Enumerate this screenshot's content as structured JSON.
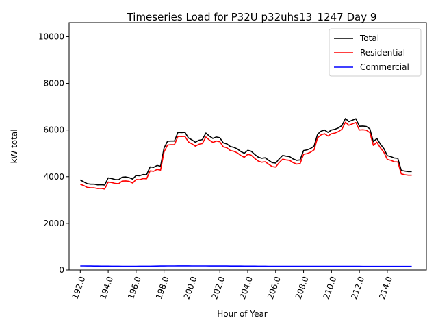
{
  "chart_data": {
    "type": "line",
    "title": "Timeseries Load for P32U p32uhs13_1247  Day 9",
    "xlabel": "Hour of Year",
    "ylabel": "kW total",
    "xlim": [
      191.2,
      216.8
    ],
    "ylim": [
      0,
      10600
    ],
    "xticks": [
      192,
      194,
      196,
      198,
      200,
      202,
      204,
      206,
      208,
      210,
      212,
      214
    ],
    "xtick_labels": [
      "192.0",
      "194.0",
      "196.0",
      "198.0",
      "200.0",
      "202.0",
      "204.0",
      "206.0",
      "208.0",
      "210.0",
      "212.0",
      "214.0"
    ],
    "yticks": [
      0,
      2000,
      4000,
      6000,
      8000,
      10000
    ],
    "ytick_labels": [
      "0",
      "2000",
      "4000",
      "6000",
      "8000",
      "10000"
    ],
    "legend_position": "top-right",
    "grid": false,
    "x": [
      192.0,
      192.25,
      192.5,
      192.75,
      193.0,
      193.25,
      193.5,
      193.75,
      194.0,
      194.25,
      194.5,
      194.75,
      195.0,
      195.25,
      195.5,
      195.75,
      196.0,
      196.25,
      196.5,
      196.75,
      197.0,
      197.25,
      197.5,
      197.75,
      198.0,
      198.25,
      198.5,
      198.75,
      199.0,
      199.25,
      199.5,
      199.75,
      200.0,
      200.25,
      200.5,
      200.75,
      201.0,
      201.25,
      201.5,
      201.75,
      202.0,
      202.25,
      202.5,
      202.75,
      203.0,
      203.25,
      203.5,
      203.75,
      204.0,
      204.25,
      204.5,
      204.75,
      205.0,
      205.25,
      205.5,
      205.75,
      206.0,
      206.25,
      206.5,
      206.75,
      207.0,
      207.25,
      207.5,
      207.75,
      208.0,
      208.25,
      208.5,
      208.75,
      209.0,
      209.25,
      209.5,
      209.75,
      210.0,
      210.25,
      210.5,
      210.75,
      211.0,
      211.25,
      211.5,
      211.75,
      212.0,
      212.25,
      212.5,
      212.75,
      213.0,
      213.25,
      213.5,
      213.75,
      214.0,
      214.25,
      214.5,
      214.75,
      215.0,
      215.25,
      215.5,
      215.75
    ],
    "series": [
      {
        "name": "Total",
        "color": "#000000",
        "values": [
          3860,
          3780,
          3700,
          3680,
          3680,
          3650,
          3660,
          3640,
          3950,
          3920,
          3880,
          3870,
          3980,
          3990,
          3960,
          3900,
          4050,
          4040,
          4090,
          4080,
          4420,
          4400,
          4480,
          4450,
          5230,
          5520,
          5530,
          5530,
          5900,
          5890,
          5900,
          5660,
          5580,
          5480,
          5560,
          5590,
          5870,
          5740,
          5640,
          5700,
          5670,
          5450,
          5410,
          5290,
          5260,
          5190,
          5080,
          5000,
          5130,
          5090,
          4950,
          4840,
          4790,
          4810,
          4700,
          4600,
          4580,
          4760,
          4910,
          4880,
          4860,
          4760,
          4700,
          4720,
          5120,
          5150,
          5210,
          5310,
          5820,
          5950,
          6000,
          5900,
          6000,
          6030,
          6090,
          6190,
          6490,
          6360,
          6420,
          6480,
          6160,
          6170,
          6150,
          6050,
          5500,
          5640,
          5400,
          5210,
          4900,
          4860,
          4800,
          4790,
          4270,
          4240,
          4220,
          4220
        ]
      },
      {
        "name": "Residential",
        "color": "#ff0000",
        "values": [
          3680,
          3620,
          3540,
          3520,
          3520,
          3490,
          3500,
          3470,
          3770,
          3750,
          3710,
          3700,
          3810,
          3820,
          3800,
          3730,
          3880,
          3870,
          3920,
          3910,
          4250,
          4230,
          4310,
          4280,
          5060,
          5360,
          5370,
          5370,
          5730,
          5720,
          5730,
          5490,
          5410,
          5310,
          5390,
          5420,
          5700,
          5570,
          5470,
          5530,
          5500,
          5280,
          5240,
          5120,
          5090,
          5020,
          4910,
          4830,
          4960,
          4920,
          4780,
          4670,
          4620,
          4640,
          4530,
          4430,
          4410,
          4600,
          4750,
          4720,
          4700,
          4600,
          4540,
          4560,
          4960,
          4990,
          5050,
          5150,
          5660,
          5790,
          5840,
          5740,
          5840,
          5870,
          5930,
          6030,
          6330,
          6200,
          6260,
          6320,
          6000,
          6010,
          5990,
          5890,
          5340,
          5480,
          5240,
          5050,
          4740,
          4700,
          4640,
          4630,
          4120,
          4080,
          4060,
          4060
        ]
      },
      {
        "name": "Commercial",
        "color": "#0000ff",
        "values": [
          175,
          175,
          174,
          172,
          170,
          169,
          168,
          167,
          166,
          165,
          164,
          163,
          162,
          162,
          162,
          162,
          162,
          163,
          163,
          164,
          165,
          167,
          170,
          172,
          174,
          175,
          176,
          177,
          178,
          178,
          178,
          178,
          177,
          176,
          175,
          175,
          175,
          174,
          174,
          173,
          173,
          172,
          172,
          171,
          170,
          170,
          169,
          168,
          168,
          167,
          166,
          165,
          164,
          163,
          162,
          162,
          162,
          161,
          160,
          160,
          159,
          159,
          159,
          159,
          160,
          160,
          160,
          160,
          160,
          160,
          159,
          159,
          159,
          159,
          159,
          158,
          158,
          158,
          158,
          158,
          158,
          157,
          157,
          157,
          157,
          157,
          157,
          157,
          157,
          157,
          157,
          157,
          157,
          157,
          157,
          157
        ]
      }
    ]
  }
}
